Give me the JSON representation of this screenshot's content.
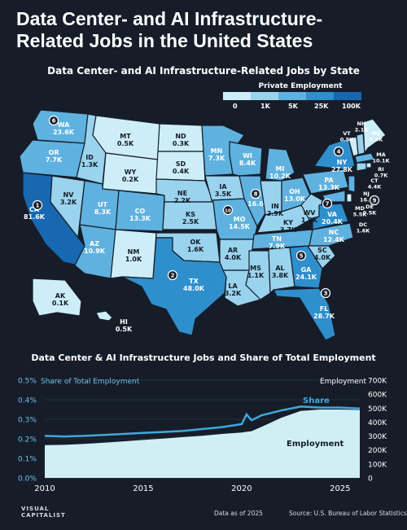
{
  "title": "Data Center- and AI Infrastructure-Related Jobs in the United States",
  "map": {
    "subtitle": "Data Center- and AI Infrastructure-Related Jobs by State",
    "legend": {
      "title": "Private Employment",
      "ticks": [
        "0",
        "1K",
        "5K",
        "25K",
        "100K"
      ],
      "colors": [
        "#cdeef8",
        "#9ad3ee",
        "#5fb2df",
        "#2f8fcc",
        "#1767b1"
      ]
    },
    "states": [
      {
        "abbr": "WA",
        "value": "23.6K",
        "rank": "6"
      },
      {
        "abbr": "OR",
        "value": "7.7K"
      },
      {
        "abbr": "CA",
        "value": "81.6K",
        "rank": "1"
      },
      {
        "abbr": "NV",
        "value": "3.2K"
      },
      {
        "abbr": "ID",
        "value": "1.3K"
      },
      {
        "abbr": "MT",
        "value": "0.5K"
      },
      {
        "abbr": "WY",
        "value": "0.2K"
      },
      {
        "abbr": "UT",
        "value": "8.3K"
      },
      {
        "abbr": "AZ",
        "value": "10.9K"
      },
      {
        "abbr": "CO",
        "value": "13.3K"
      },
      {
        "abbr": "NM",
        "value": "1.0K"
      },
      {
        "abbr": "ND",
        "value": "0.3K"
      },
      {
        "abbr": "SD",
        "value": "0.4K"
      },
      {
        "abbr": "NE",
        "value": "2.2K"
      },
      {
        "abbr": "KS",
        "value": "2.5K"
      },
      {
        "abbr": "OK",
        "value": "1.6K"
      },
      {
        "abbr": "TX",
        "value": "48.0K",
        "rank": "2"
      },
      {
        "abbr": "MN",
        "value": "7.3K"
      },
      {
        "abbr": "IA",
        "value": "3.5K"
      },
      {
        "abbr": "MO",
        "value": "14.5K",
        "rank": "10"
      },
      {
        "abbr": "AR",
        "value": "4.0K"
      },
      {
        "abbr": "LA",
        "value": "3.2K"
      },
      {
        "abbr": "WI",
        "value": "8.4K"
      },
      {
        "abbr": "IL",
        "value": "16.6",
        "rank": "8"
      },
      {
        "abbr": "MS",
        "value": "1.1K"
      },
      {
        "abbr": "MI",
        "value": "10.2K"
      },
      {
        "abbr": "IN",
        "value": "3.9K"
      },
      {
        "abbr": "KY",
        "value": "3.7K"
      },
      {
        "abbr": "TN",
        "value": "7.9K"
      },
      {
        "abbr": "AL",
        "value": "3.8K"
      },
      {
        "abbr": "GA",
        "value": "24.1K",
        "rank": "5"
      },
      {
        "abbr": "FL",
        "value": "28.7K",
        "rank": "3"
      },
      {
        "abbr": "OH",
        "value": "13.0K"
      },
      {
        "abbr": "WV",
        "value": "1.2K"
      },
      {
        "abbr": "VA",
        "value": "20.4K",
        "rank": "7"
      },
      {
        "abbr": "NC",
        "value": "12.4K"
      },
      {
        "abbr": "SC",
        "value": "4.0K"
      },
      {
        "abbr": "PA",
        "value": "13.3K"
      },
      {
        "abbr": "NY",
        "value": "27.8K",
        "rank": "4"
      },
      {
        "abbr": "VT",
        "value": "0.5K"
      },
      {
        "abbr": "NH",
        "value": "2.1K"
      },
      {
        "abbr": "ME",
        "value": "0.8K"
      },
      {
        "abbr": "MA",
        "value": "10.1K"
      },
      {
        "abbr": "RI",
        "value": "0.7K"
      },
      {
        "abbr": "CT",
        "value": "4.4K"
      },
      {
        "abbr": "NJ",
        "value": "16.0",
        "rank": "9"
      },
      {
        "abbr": "DE",
        "value": "0.5K"
      },
      {
        "abbr": "MD",
        "value": "5.5K"
      },
      {
        "abbr": "DC",
        "value": "1.6K"
      },
      {
        "abbr": "AK",
        "value": "0.1K"
      },
      {
        "abbr": "HI",
        "value": "0.5K"
      }
    ]
  },
  "chart": {
    "title": "Data Center & AI Infrastructure Jobs and Share of Total Employment",
    "left_axis_label": "Share of Total Employment",
    "right_axis_label": "Employment",
    "share_label": "Share",
    "employment_label": "Employment"
  },
  "chart_data": {
    "type": "area",
    "x": [
      2010,
      2011,
      2012,
      2013,
      2014,
      2015,
      2016,
      2017,
      2018,
      2019,
      2020,
      2020.25,
      2020.5,
      2021,
      2022,
      2023,
      2024,
      2025,
      2025.5,
      2026
    ],
    "series": [
      {
        "name": "Share",
        "axis": "left",
        "values": [
          0.215,
          0.212,
          0.215,
          0.22,
          0.225,
          0.23,
          0.235,
          0.24,
          0.25,
          0.26,
          0.275,
          0.325,
          0.295,
          0.32,
          0.345,
          0.365,
          0.36,
          0.36,
          0.357,
          0.355
        ]
      },
      {
        "name": "Employment",
        "axis": "right",
        "values": [
          235000,
          237000,
          243000,
          252000,
          262000,
          272000,
          282000,
          292000,
          302000,
          315000,
          325000,
          330000,
          335000,
          365000,
          430000,
          480000,
          490000,
          490000,
          488000,
          487000
        ]
      }
    ],
    "left_ticks": [
      "0.0%",
      "0.1%",
      "0.2%",
      "0.3%",
      "0.4%",
      "0.5%"
    ],
    "right_ticks": [
      "0",
      "100K",
      "200K",
      "300K",
      "400K",
      "500K",
      "600K",
      "700K"
    ],
    "x_ticks": [
      "2010",
      "2015",
      "2020",
      "2025"
    ],
    "left_ylim": [
      0,
      0.5
    ],
    "right_ylim": [
      0,
      700000
    ],
    "xlim": [
      2010,
      2026
    ],
    "grid": true
  },
  "footer": {
    "logo_line1": "VISUAL",
    "logo_line2": "CAPITALIST",
    "note": "Data as of 2025",
    "source": "Source: U.S. Bureau of Labor Statistics"
  }
}
